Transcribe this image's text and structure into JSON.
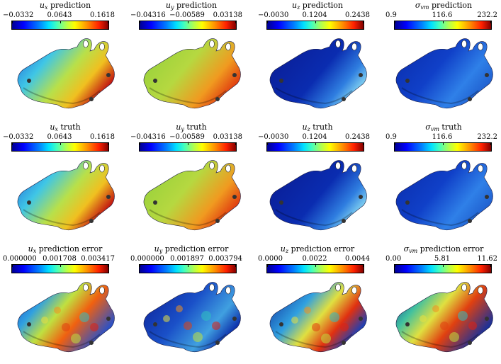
{
  "panels": [
    {
      "id": "ux-prediction",
      "var": "u",
      "sub": "x",
      "suffix": " prediction",
      "min": "−0.0332",
      "mid": "0.0643",
      "max": "0.1618",
      "field": "ux"
    },
    {
      "id": "uy-prediction",
      "var": "u",
      "sub": "y",
      "suffix": " prediction",
      "min": "−0.04316",
      "mid": "−0.00589",
      "max": "0.03138",
      "field": "uy"
    },
    {
      "id": "uz-prediction",
      "var": "u",
      "sub": "z",
      "suffix": " prediction",
      "min": "−0.0030",
      "mid": "0.1204",
      "max": "0.2438",
      "field": "uz"
    },
    {
      "id": "svm-prediction",
      "var": "σ",
      "sub": "vm",
      "suffix": " prediction",
      "min": "0.9",
      "mid": "116.6",
      "max": "232.2",
      "field": "svm"
    },
    {
      "id": "ux-truth",
      "var": "u",
      "sub": "x",
      "suffix": " truth",
      "min": "−0.0332",
      "mid": "0.0643",
      "max": "0.1618",
      "field": "ux"
    },
    {
      "id": "uy-truth",
      "var": "u",
      "sub": "y",
      "suffix": " truth",
      "min": "−0.04316",
      "mid": "−0.00589",
      "max": "0.03138",
      "field": "uy"
    },
    {
      "id": "uz-truth",
      "var": "u",
      "sub": "z",
      "suffix": " truth",
      "min": "−0.0030",
      "mid": "0.1204",
      "max": "0.2438",
      "field": "uz"
    },
    {
      "id": "svm-truth",
      "var": "σ",
      "sub": "vm",
      "suffix": " truth",
      "min": "0.9",
      "mid": "116.6",
      "max": "232.2",
      "field": "svm"
    },
    {
      "id": "ux-error",
      "var": "u",
      "sub": "x",
      "suffix": " prediction error",
      "min": "0.000000",
      "mid": "0.001708",
      "max": "0.003417",
      "field": "err"
    },
    {
      "id": "uy-error",
      "var": "u",
      "sub": "y",
      "suffix": " prediction error",
      "min": "0.000000",
      "mid": "0.001897",
      "max": "0.003794",
      "field": "err2"
    },
    {
      "id": "uz-error",
      "var": "u",
      "sub": "z",
      "suffix": " prediction error",
      "min": "0.0000",
      "mid": "0.0022",
      "max": "0.0044",
      "field": "err3"
    },
    {
      "id": "svm-error",
      "var": "σ",
      "sub": "vm",
      "suffix": " prediction error",
      "min": "0.00",
      "mid": "5.81",
      "max": "11.62",
      "field": "err4"
    }
  ],
  "colormap": "jet"
}
